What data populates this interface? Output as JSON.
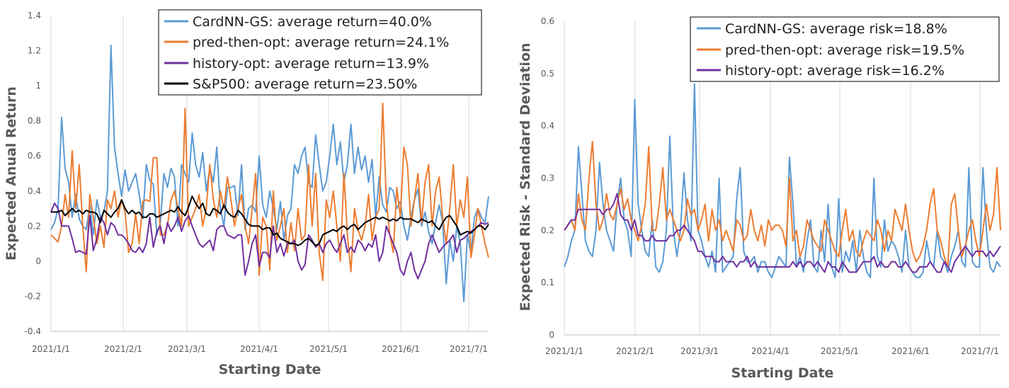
{
  "chart_data": [
    {
      "type": "line",
      "id": "left",
      "xlabel": "Starting Date",
      "ylabel": "Expected Anual Return",
      "ylim": [
        -0.4,
        1.4
      ],
      "ytick_labels": [
        "-0.4",
        "-0.2",
        "0",
        "0.2",
        "0.4",
        "0.6",
        "0.8",
        "1",
        "1.2",
        "1.4"
      ],
      "xtick_labels": [
        "2021/1/1",
        "2021/2/1",
        "2021/3/1",
        "2021/4/1",
        "2021/5/1",
        "2021/6/1",
        "2021/7/1"
      ],
      "grid": "vertical",
      "legend_position": "top-right",
      "x_count": 125,
      "series": [
        {
          "name": "CardNN-GS",
          "legend": "CardNN-GS: average return=40.0%",
          "color": "#5B9BD5",
          "values": [
            0.18,
            0.22,
            0.3,
            0.82,
            0.53,
            0.45,
            0.25,
            0.38,
            0.24,
            0.2,
            0.18,
            0.32,
            0.15,
            0.35,
            0.25,
            0.28,
            0.4,
            1.23,
            0.65,
            0.5,
            0.37,
            0.52,
            0.4,
            0.45,
            0.5,
            0.38,
            0.24,
            0.55,
            0.46,
            0.44,
            0.15,
            0.22,
            0.5,
            0.42,
            0.53,
            0.48,
            0.2,
            0.55,
            0.5,
            0.45,
            0.73,
            0.55,
            0.48,
            0.62,
            0.4,
            0.53,
            0.45,
            0.65,
            0.3,
            0.2,
            0.42,
            0.42,
            0.43,
            0.26,
            0.55,
            0.18,
            0.3,
            0.32,
            0.28,
            0.6,
            0.32,
            0.25,
            0.4,
            0.3,
            0.18,
            0.34,
            0.12,
            0.26,
            0.3,
            0.55,
            0.5,
            0.6,
            0.65,
            0.45,
            0.42,
            0.72,
            0.55,
            0.4,
            0.45,
            0.6,
            0.78,
            0.55,
            0.68,
            0.45,
            0.55,
            0.78,
            0.5,
            0.65,
            0.52,
            0.6,
            0.45,
            0.58,
            0.25,
            0.48,
            0.32,
            0.28,
            0.42,
            0.4,
            0.3,
            0.34,
            0.2,
            0.12,
            0.25,
            0.35,
            0.41,
            0.2,
            0.28,
            0.17,
            0.1,
            0.22,
            0.32,
            0.22,
            -0.13,
            0.12,
            0.0,
            0.2,
            0.1,
            -0.23,
            0.15,
            0.05,
            0.25,
            0.3,
            0.25,
            0.22,
            0.37
          ]
        },
        {
          "name": "pred-then-opt",
          "legend": "pred-then-opt: average return=24.1%",
          "color": "#ED7D31",
          "values": [
            0.15,
            0.13,
            0.11,
            0.2,
            0.38,
            0.25,
            0.63,
            0.3,
            0.55,
            0.2,
            -0.06,
            0.38,
            0.25,
            0.1,
            0.2,
            0.08,
            0.35,
            0.3,
            0.4,
            0.25,
            0.35,
            0.28,
            0.05,
            0.1,
            0.27,
            0.1,
            0.34,
            0.35,
            0.34,
            0.59,
            0.59,
            0.15,
            0.15,
            0.2,
            0.35,
            0.4,
            0.3,
            0.2,
            0.87,
            0.2,
            0.25,
            0.3,
            0.38,
            0.2,
            0.3,
            0.55,
            0.35,
            0.25,
            0.4,
            0.3,
            0.48,
            0.35,
            0.2,
            0.3,
            0.38,
            0.2,
            0.1,
            0.3,
            0.5,
            -0.08,
            0.25,
            0.2,
            -0.05,
            0.4,
            0.12,
            0.2,
            0.3,
            0.05,
            0.22,
            0.06,
            0.3,
            0.12,
            0.15,
            0.55,
            0.2,
            0.5,
            0.05,
            -0.11,
            0.35,
            0.25,
            0.4,
            0.2,
            0.0,
            0.5,
            0.15,
            -0.06,
            0.3,
            0.18,
            0.12,
            0.2,
            0.38,
            0.12,
            0.25,
            0.3,
            0.9,
            0.35,
            0.15,
            0.05,
            0.42,
            0.25,
            0.65,
            0.55,
            0.2,
            0.35,
            0.5,
            0.22,
            0.45,
            0.55,
            0.2,
            0.4,
            0.48,
            0.25,
            0.1,
            0.3,
            0.55,
            0.2,
            0.35,
            0.25,
            0.48,
            0.02,
            0.15,
            0.3,
            0.2,
            0.1,
            0.02
          ]
        },
        {
          "name": "history-opt",
          "legend": "history-opt: average return=13.9%",
          "color": "#7030A0",
          "values": [
            0.28,
            0.33,
            0.3,
            0.2,
            0.2,
            0.2,
            0.13,
            0.05,
            0.06,
            0.05,
            0.04,
            0.26,
            0.06,
            0.13,
            0.25,
            0.22,
            0.15,
            0.22,
            0.2,
            0.15,
            0.15,
            0.13,
            0.1,
            0.06,
            0.05,
            0.08,
            0.05,
            0.1,
            0.25,
            0.08,
            0.17,
            0.2,
            0.1,
            0.22,
            0.17,
            0.2,
            0.25,
            0.17,
            0.23,
            0.26,
            0.2,
            0.15,
            0.1,
            0.08,
            0.1,
            0.12,
            0.06,
            0.18,
            0.2,
            0.2,
            0.15,
            0.14,
            0.13,
            0.15,
            0.15,
            -0.08,
            0.0,
            0.1,
            0.15,
            -0.03,
            0.05,
            0.05,
            0.02,
            0.2,
            0.05,
            0.1,
            0.03,
            0.1,
            0.1,
            0.12,
            0.0,
            -0.05,
            -0.02,
            0.15,
            0.12,
            0.08,
            0.1,
            0.05,
            0.1,
            0.12,
            0.08,
            0.05,
            0.1,
            0.15,
            0.05,
            0.08,
            0.05,
            0.12,
            0.1,
            0.06,
            0.1,
            0.08,
            0.15,
            0.0,
            0.05,
            0.2,
            0.15,
            0.1,
            0.05,
            -0.05,
            -0.08,
            0.0,
            0.05,
            -0.05,
            -0.1,
            -0.05,
            0.0,
            0.1,
            0.15,
            0.1,
            0.05,
            0.08,
            0.1,
            0.12,
            0.15,
            0.05,
            0.12,
            0.13,
            0.15,
            0.17,
            0.18,
            0.2,
            0.22,
            0.21,
            0.22
          ]
        },
        {
          "name": "S&P500",
          "legend": "S&P500: average return=23.50%",
          "color": "#000000",
          "values": [
            0.28,
            0.28,
            0.28,
            0.29,
            0.26,
            0.28,
            0.3,
            0.28,
            0.29,
            0.27,
            0.29,
            0.28,
            0.28,
            0.27,
            0.22,
            0.29,
            0.27,
            0.25,
            0.28,
            0.3,
            0.35,
            0.3,
            0.27,
            0.29,
            0.27,
            0.28,
            0.25,
            0.25,
            0.27,
            0.27,
            0.25,
            0.26,
            0.27,
            0.28,
            0.29,
            0.28,
            0.31,
            0.28,
            0.26,
            0.31,
            0.37,
            0.33,
            0.3,
            0.33,
            0.27,
            0.26,
            0.3,
            0.29,
            0.27,
            0.32,
            0.28,
            0.26,
            0.25,
            0.29,
            0.27,
            0.24,
            0.21,
            0.2,
            0.2,
            0.2,
            0.18,
            0.19,
            0.19,
            0.15,
            0.16,
            0.13,
            0.12,
            0.11,
            0.1,
            0.1,
            0.09,
            0.1,
            0.12,
            0.13,
            0.11,
            0.09,
            0.1,
            0.15,
            0.16,
            0.17,
            0.18,
            0.17,
            0.19,
            0.2,
            0.18,
            0.2,
            0.21,
            0.18,
            0.2,
            0.22,
            0.23,
            0.24,
            0.25,
            0.24,
            0.25,
            0.24,
            0.23,
            0.24,
            0.23,
            0.25,
            0.24,
            0.24,
            0.24,
            0.23,
            0.22,
            0.24,
            0.23,
            0.22,
            0.23,
            0.2,
            0.18,
            0.22,
            0.25,
            0.26,
            0.23,
            0.2,
            0.15,
            0.16,
            0.17,
            0.16,
            0.18,
            0.2,
            0.2,
            0.18,
            0.21
          ]
        }
      ]
    },
    {
      "type": "line",
      "id": "right",
      "xlabel": "Starting Date",
      "ylabel": "Expected Risk -  Standard Deviation",
      "ylim": [
        0,
        0.6
      ],
      "ytick_labels": [
        "0",
        "0.1",
        "0.2",
        "0.3",
        "0.4",
        "0.5",
        "0.6"
      ],
      "xtick_labels": [
        "2021/1/1",
        "2021/2/1",
        "2021/3/1",
        "2021/4/1",
        "2021/5/1",
        "2021/6/1",
        "2021/7/1"
      ],
      "grid": "vertical",
      "legend_position": "top-right",
      "x_count": 125,
      "series": [
        {
          "name": "CardNN-GS",
          "legend": "CardNN-GS: average risk=18.8%",
          "color": "#5B9BD5",
          "values": [
            0.13,
            0.15,
            0.18,
            0.2,
            0.36,
            0.27,
            0.18,
            0.16,
            0.15,
            0.2,
            0.33,
            0.25,
            0.2,
            0.18,
            0.16,
            0.25,
            0.3,
            0.22,
            0.2,
            0.15,
            0.45,
            0.25,
            0.2,
            0.16,
            0.15,
            0.22,
            0.13,
            0.12,
            0.14,
            0.2,
            0.38,
            0.2,
            0.15,
            0.2,
            0.31,
            0.22,
            0.18,
            0.48,
            0.2,
            0.18,
            0.15,
            0.13,
            0.16,
            0.12,
            0.3,
            0.12,
            0.13,
            0.14,
            0.15,
            0.26,
            0.32,
            0.16,
            0.14,
            0.14,
            0.15,
            0.12,
            0.14,
            0.14,
            0.12,
            0.11,
            0.13,
            0.15,
            0.14,
            0.13,
            0.34,
            0.25,
            0.13,
            0.15,
            0.12,
            0.18,
            0.22,
            0.13,
            0.12,
            0.2,
            0.14,
            0.25,
            0.13,
            0.11,
            0.26,
            0.12,
            0.16,
            0.14,
            0.18,
            0.12,
            0.2,
            0.15,
            0.12,
            0.11,
            0.3,
            0.15,
            0.13,
            0.22,
            0.16,
            0.18,
            0.17,
            0.15,
            0.12,
            0.2,
            0.13,
            0.12,
            0.11,
            0.11,
            0.12,
            0.18,
            0.14,
            0.13,
            0.2,
            0.15,
            0.14,
            0.12,
            0.15,
            0.17,
            0.2,
            0.14,
            0.13,
            0.32,
            0.14,
            0.13,
            0.13,
            0.32,
            0.2,
            0.13,
            0.12,
            0.14,
            0.13
          ]
        },
        {
          "name": "pred-then-opt",
          "legend": "pred-then-opt: average risk=19.5%",
          "color": "#ED7D31",
          "values": [
            0.2,
            0.21,
            0.22,
            0.2,
            0.27,
            0.22,
            0.2,
            0.3,
            0.37,
            0.25,
            0.2,
            0.22,
            0.27,
            0.23,
            0.22,
            0.25,
            0.28,
            0.24,
            0.26,
            0.22,
            0.2,
            0.18,
            0.21,
            0.25,
            0.36,
            0.2,
            0.2,
            0.25,
            0.32,
            0.22,
            0.24,
            0.22,
            0.2,
            0.18,
            0.2,
            0.26,
            0.23,
            0.24,
            0.2,
            0.22,
            0.25,
            0.18,
            0.24,
            0.2,
            0.22,
            0.18,
            0.2,
            0.18,
            0.16,
            0.22,
            0.21,
            0.18,
            0.19,
            0.24,
            0.2,
            0.18,
            0.21,
            0.17,
            0.22,
            0.2,
            0.21,
            0.21,
            0.2,
            0.17,
            0.3,
            0.18,
            0.2,
            0.15,
            0.17,
            0.22,
            0.2,
            0.18,
            0.17,
            0.16,
            0.22,
            0.2,
            0.18,
            0.16,
            0.15,
            0.2,
            0.24,
            0.18,
            0.2,
            0.16,
            0.15,
            0.18,
            0.2,
            0.19,
            0.18,
            0.22,
            0.2,
            0.16,
            0.2,
            0.18,
            0.24,
            0.22,
            0.2,
            0.25,
            0.2,
            0.16,
            0.14,
            0.15,
            0.17,
            0.2,
            0.25,
            0.28,
            0.2,
            0.18,
            0.15,
            0.13,
            0.25,
            0.27,
            0.2,
            0.15,
            0.17,
            0.2,
            0.22,
            0.18,
            0.15,
            0.2,
            0.25,
            0.2,
            0.23,
            0.32,
            0.2
          ]
        },
        {
          "name": "history-opt",
          "legend": "history-opt: average risk=16.2%",
          "color": "#7030A0",
          "values": [
            0.2,
            0.21,
            0.22,
            0.22,
            0.24,
            0.24,
            0.24,
            0.24,
            0.24,
            0.24,
            0.24,
            0.23,
            0.24,
            0.24,
            0.25,
            0.27,
            0.23,
            0.22,
            0.22,
            0.2,
            0.22,
            0.19,
            0.19,
            0.18,
            0.18,
            0.19,
            0.18,
            0.18,
            0.18,
            0.18,
            0.19,
            0.19,
            0.2,
            0.2,
            0.21,
            0.2,
            0.19,
            0.18,
            0.16,
            0.16,
            0.15,
            0.15,
            0.15,
            0.14,
            0.14,
            0.15,
            0.14,
            0.14,
            0.14,
            0.13,
            0.14,
            0.14,
            0.15,
            0.13,
            0.14,
            0.13,
            0.13,
            0.13,
            0.13,
            0.13,
            0.13,
            0.13,
            0.13,
            0.13,
            0.13,
            0.14,
            0.13,
            0.14,
            0.13,
            0.14,
            0.14,
            0.13,
            0.14,
            0.13,
            0.12,
            0.14,
            0.13,
            0.13,
            0.12,
            0.14,
            0.13,
            0.12,
            0.12,
            0.12,
            0.13,
            0.14,
            0.14,
            0.14,
            0.15,
            0.13,
            0.14,
            0.13,
            0.13,
            0.14,
            0.14,
            0.13,
            0.13,
            0.14,
            0.13,
            0.12,
            0.12,
            0.13,
            0.13,
            0.13,
            0.14,
            0.13,
            0.12,
            0.12,
            0.14,
            0.13,
            0.12,
            0.14,
            0.15,
            0.16,
            0.17,
            0.16,
            0.15,
            0.16,
            0.16,
            0.16,
            0.15,
            0.16,
            0.15,
            0.16,
            0.17
          ]
        }
      ]
    }
  ]
}
